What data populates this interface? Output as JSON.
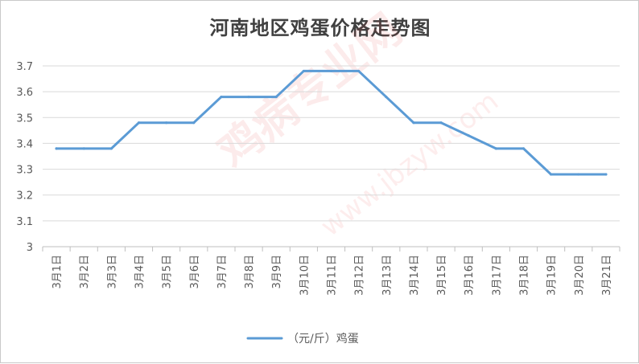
{
  "chart_data": {
    "type": "line",
    "title": "河南地区鸡蛋价格走势图",
    "xlabel": "",
    "ylabel": "",
    "categories": [
      "3月1日",
      "3月2日",
      "3月3日",
      "3月4日",
      "3月5日",
      "3月6日",
      "3月7日",
      "3月8日",
      "3月9日",
      "3月10日",
      "3月11日",
      "3月12日",
      "3月13日",
      "3月14日",
      "3月15日",
      "3月16日",
      "3月17日",
      "3月18日",
      "3月19日",
      "3月20日",
      "3月21日"
    ],
    "series": [
      {
        "name": "（元/斤）鸡蛋",
        "values": [
          3.38,
          3.38,
          3.38,
          3.48,
          3.48,
          3.48,
          3.58,
          3.58,
          3.58,
          3.68,
          3.68,
          3.68,
          3.58,
          3.48,
          3.48,
          3.43,
          3.38,
          3.38,
          3.28,
          3.28,
          3.28
        ]
      }
    ],
    "ylim": [
      3,
      3.7
    ],
    "yticks": [
      "3",
      "3.1",
      "3.2",
      "3.3",
      "3.4",
      "3.5",
      "3.6",
      "3.7"
    ],
    "grid": true,
    "legend": "bottom",
    "line_color": "#5b9bd5"
  },
  "watermark": {
    "text": "鸡病专业网",
    "url": "www.jbzyw.com"
  }
}
